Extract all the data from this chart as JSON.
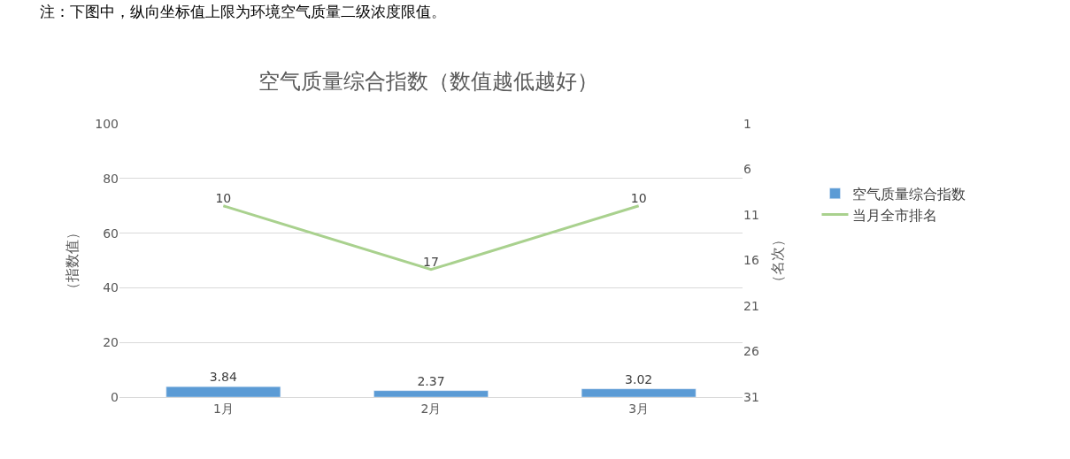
{
  "chart_data": {
    "type": "bar",
    "title": "空气质量综合指数（数值越低越好）",
    "annotations": [
      "注：下图中，纵向坐标值上限为环境空气质量二级浓度限值。"
    ],
    "ylabel": "（指数值）",
    "y2label": "（名次）",
    "categories": [
      "1月",
      "2月",
      "3月"
    ],
    "series": [
      {
        "name": "空气质量综合指数",
        "color": "#5b9bd5",
        "values": [
          3.84,
          2.37,
          3.02
        ]
      },
      {
        "name": "当月全市排名",
        "type": "line",
        "axis": "y2",
        "color": "#a9d18e",
        "values": [
          10,
          17,
          10
        ]
      }
    ],
    "ylim": [
      0,
      100
    ],
    "yticks": [
      0,
      20,
      40,
      60,
      80,
      100
    ],
    "y2lim": [
      31,
      1
    ],
    "y2ticks": [
      1,
      6,
      11,
      16,
      21,
      26,
      31
    ],
    "data_labels": true,
    "grid": "y",
    "legend": "right",
    "marker": "none"
  }
}
